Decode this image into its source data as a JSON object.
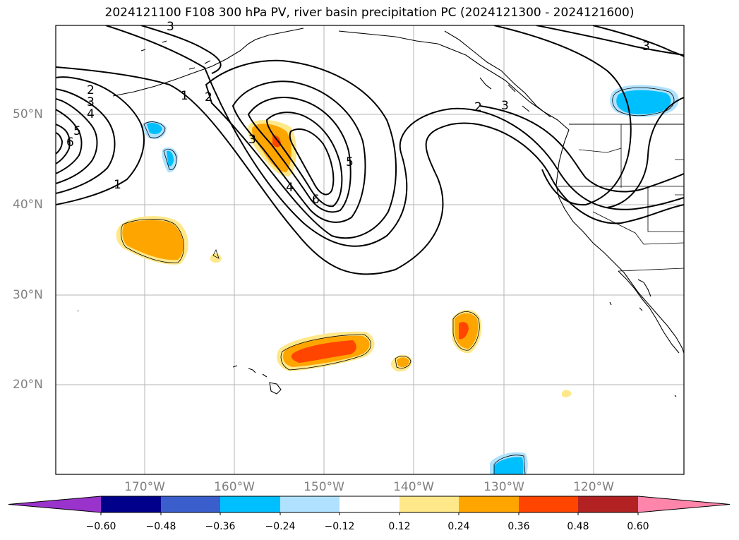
{
  "title": "2024121100 F108 300 hPa PV, river basin precipitation PC (2024121300 - 2024121600)",
  "lat_labels": [
    "50°N",
    "40°N",
    "30°N",
    "20°N"
  ],
  "lon_labels": [
    "170°W",
    "160°W",
    "150°W",
    "140°W",
    "130°W",
    "120°W"
  ],
  "contour_labels": [
    "1",
    "2",
    "3",
    "4",
    "5",
    "6"
  ],
  "colorbar": {
    "ticks": [
      "−0.60",
      "−0.48",
      "−0.36",
      "−0.24",
      "−0.12",
      "0.12",
      "0.24",
      "0.36",
      "0.48",
      "0.60"
    ],
    "colors": [
      "#9933cc",
      "#00008b",
      "#3a5fcd",
      "#00bfff",
      "#b0e2ff",
      "#ffffff",
      "#ffe88a",
      "#ffa500",
      "#ff4500",
      "#b22222",
      "#ff85aa"
    ]
  }
}
